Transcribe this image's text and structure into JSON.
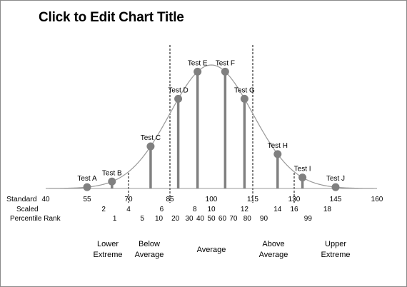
{
  "chart_data": {
    "type": "line",
    "title": "Click to Edit Chart Title",
    "x_range": [
      40,
      160
    ],
    "distribution": {
      "mean": 100,
      "sd": 15
    },
    "standard_row_label": "Standard",
    "standard_ticks": [
      "40",
      "55",
      "70",
      "85",
      "100",
      "115",
      "130",
      "145",
      "160"
    ],
    "scaled_row_label": "Scaled",
    "scaled_ticks": [
      {
        "label": "2",
        "x": 61
      },
      {
        "label": "4",
        "x": 70
      },
      {
        "label": "6",
        "x": 82
      },
      {
        "label": "8",
        "x": 94
      },
      {
        "label": "10",
        "x": 100
      },
      {
        "label": "12",
        "x": 112
      },
      {
        "label": "14",
        "x": 124
      },
      {
        "label": "16",
        "x": 130
      },
      {
        "label": "18",
        "x": 142
      }
    ],
    "percentile_row_label": "Percentile Rank",
    "percentile_ticks": [
      {
        "label": "1",
        "x": 65
      },
      {
        "label": "5",
        "x": 75
      },
      {
        "label": "10",
        "x": 81
      },
      {
        "label": "20",
        "x": 87
      },
      {
        "label": "30",
        "x": 92
      },
      {
        "label": "40",
        "x": 96
      },
      {
        "label": "50",
        "x": 100
      },
      {
        "label": "60",
        "x": 104
      },
      {
        "label": "70",
        "x": 108
      },
      {
        "label": "80",
        "x": 113
      },
      {
        "label": "90",
        "x": 119
      },
      {
        "label": "99",
        "x": 135
      }
    ],
    "dividers": [
      70,
      85,
      115,
      130
    ],
    "categories": [
      {
        "lines": [
          "Lower",
          "Extreme"
        ],
        "x": 62.5
      },
      {
        "lines": [
          "Below",
          "Average"
        ],
        "x": 77.5
      },
      {
        "lines": [
          "Average"
        ],
        "x": 100
      },
      {
        "lines": [
          "Above",
          "Average"
        ],
        "x": 122.5
      },
      {
        "lines": [
          "Upper",
          "Extreme"
        ],
        "x": 145
      }
    ],
    "series": [
      {
        "name": "Test A",
        "x": 55
      },
      {
        "name": "Test B",
        "x": 64
      },
      {
        "name": "Test C",
        "x": 78
      },
      {
        "name": "Test D",
        "x": 88
      },
      {
        "name": "Test E",
        "x": 95
      },
      {
        "name": "Test F",
        "x": 105
      },
      {
        "name": "Test G",
        "x": 112
      },
      {
        "name": "Test H",
        "x": 124
      },
      {
        "name": "Test I",
        "x": 133
      },
      {
        "name": "Test J",
        "x": 145
      }
    ]
  },
  "colors": {
    "curve": "#999999",
    "marker": "#808080",
    "bar": "#808080",
    "axis": "#999999",
    "divider": "#000000"
  }
}
